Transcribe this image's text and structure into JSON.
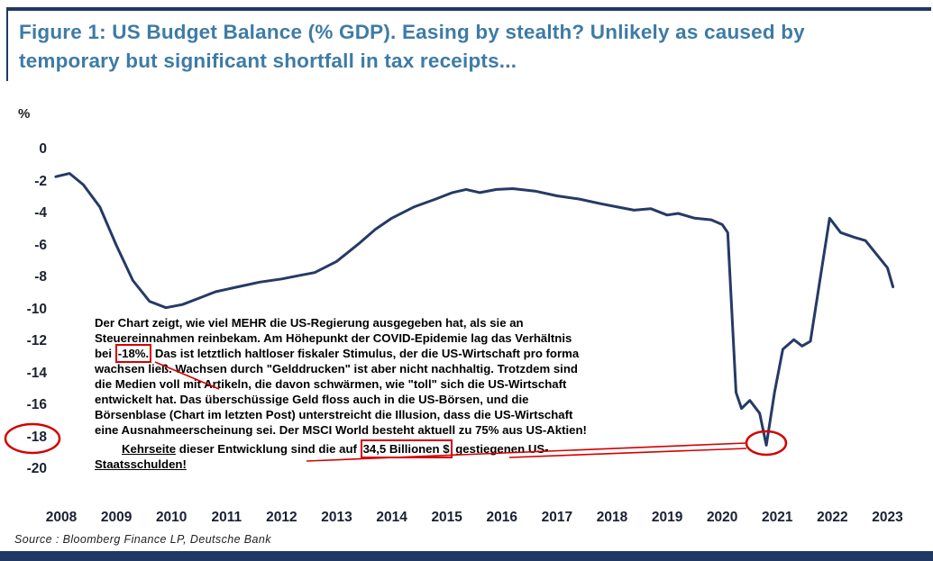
{
  "figure": {
    "title_lines": [
      "Figure 1: US Budget Balance (% GDP). Easing by stealth? Unlikely as caused by",
      "temporary but significant shortfall in tax receipts..."
    ],
    "source": "Source : Bloomberg Finance LP, Deutsche Bank"
  },
  "chart_data": {
    "type": "line",
    "title": "US Budget Balance (% GDP)",
    "xlabel": "",
    "ylabel": "%",
    "ylim": [
      -20,
      0
    ],
    "xlim": [
      2008,
      2023.5
    ],
    "grid": false,
    "legend": "none",
    "y_ticks": [
      0,
      -2,
      -4,
      -6,
      -8,
      -10,
      -12,
      -14,
      -16,
      -18,
      -20
    ],
    "x_ticks": [
      2008,
      2009,
      2010,
      2011,
      2012,
      2013,
      2014,
      2015,
      2016,
      2017,
      2018,
      2019,
      2020,
      2021,
      2022,
      2023
    ],
    "line_color": "#253a66",
    "series": [
      {
        "name": "US Budget Balance (% GDP)",
        "points": [
          [
            2007.9,
            -1.7
          ],
          [
            2008.15,
            -1.5
          ],
          [
            2008.4,
            -2.2
          ],
          [
            2008.7,
            -3.6
          ],
          [
            2009.0,
            -6.0
          ],
          [
            2009.3,
            -8.2
          ],
          [
            2009.6,
            -9.5
          ],
          [
            2009.9,
            -9.9
          ],
          [
            2010.2,
            -9.7
          ],
          [
            2010.5,
            -9.3
          ],
          [
            2010.8,
            -8.9
          ],
          [
            2011.2,
            -8.6
          ],
          [
            2011.6,
            -8.3
          ],
          [
            2012.0,
            -8.1
          ],
          [
            2012.3,
            -7.9
          ],
          [
            2012.6,
            -7.7
          ],
          [
            2013.0,
            -7.0
          ],
          [
            2013.4,
            -5.9
          ],
          [
            2013.7,
            -5.0
          ],
          [
            2014.0,
            -4.3
          ],
          [
            2014.4,
            -3.6
          ],
          [
            2014.8,
            -3.1
          ],
          [
            2015.1,
            -2.7
          ],
          [
            2015.35,
            -2.5
          ],
          [
            2015.6,
            -2.7
          ],
          [
            2015.9,
            -2.5
          ],
          [
            2016.2,
            -2.45
          ],
          [
            2016.6,
            -2.6
          ],
          [
            2017.0,
            -2.9
          ],
          [
            2017.4,
            -3.1
          ],
          [
            2017.8,
            -3.4
          ],
          [
            2018.1,
            -3.6
          ],
          [
            2018.4,
            -3.8
          ],
          [
            2018.7,
            -3.7
          ],
          [
            2019.0,
            -4.1
          ],
          [
            2019.2,
            -4.0
          ],
          [
            2019.5,
            -4.3
          ],
          [
            2019.8,
            -4.4
          ],
          [
            2020.0,
            -4.7
          ],
          [
            2020.1,
            -5.2
          ],
          [
            2020.25,
            -15.2
          ],
          [
            2020.35,
            -16.2
          ],
          [
            2020.5,
            -15.7
          ],
          [
            2020.68,
            -16.5
          ],
          [
            2020.8,
            -18.5
          ],
          [
            2020.95,
            -15.2
          ],
          [
            2021.1,
            -12.5
          ],
          [
            2021.3,
            -11.9
          ],
          [
            2021.45,
            -12.3
          ],
          [
            2021.6,
            -12.0
          ],
          [
            2021.95,
            -4.3
          ],
          [
            2022.15,
            -5.2
          ],
          [
            2022.4,
            -5.5
          ],
          [
            2022.6,
            -5.7
          ],
          [
            2023.0,
            -7.4
          ],
          [
            2023.1,
            -8.6
          ]
        ]
      }
    ],
    "annotations": [
      "-18 y-axis tick circled in red",
      "COVID trough near 2021 (about -18.5% of GDP) circled in red",
      "red pointer lines connect the note text to the trough"
    ]
  },
  "overlay_note": {
    "lines": [
      {
        "segments": [
          {
            "t": "Der Chart zeigt, wie viel MEHR die US-Regierung ausgegeben hat, als sie an"
          }
        ]
      },
      {
        "segments": [
          {
            "t": "Steuereinnahmen reinbekam. Am Höhepunkt der COVID-Epidemie lag das Verhältnis"
          }
        ]
      },
      {
        "segments": [
          {
            "t": "bei "
          },
          {
            "t": "-18%.",
            "style": "redbox"
          },
          {
            "t": " Das ist letztlich haltloser fiskaler Stimulus, der die US-Wirtschaft pro forma"
          }
        ]
      },
      {
        "segments": [
          {
            "t": "wachsen ließ. Wachsen durch \"Gelddrucken\" ist aber nicht nachhaltig. Trotzdem sind"
          }
        ]
      },
      {
        "segments": [
          {
            "t": "die Medien voll mit Artikeln, die davon schwärmen, wie \"toll\" sich die US-Wirtschaft"
          }
        ]
      },
      {
        "segments": [
          {
            "t": "entwickelt hat. Das überschüssige Geld floss auch in die US-Börsen, und die"
          }
        ]
      },
      {
        "segments": [
          {
            "t": "Börsenblase (Chart im letzten Post) unterstreicht die Illusion, dass die US-Wirtschaft"
          }
        ]
      },
      {
        "segments": [
          {
            "t": "eine Ausnahmeerscheinung sei. Der MSCI World besteht aktuell zu 75% aus US-Aktien!"
          }
        ]
      },
      {
        "indent": true,
        "segments": [
          {
            "t": "Kehrseite",
            "style": "underline"
          },
          {
            "t": " dieser Entwicklung sind die auf "
          },
          {
            "t": "34,5 Billionen $",
            "style": "redbox"
          },
          {
            "t": " gestiegenen US-"
          }
        ]
      },
      {
        "segments": [
          {
            "t": "Staatsschulden!",
            "style": "underline"
          }
        ]
      }
    ]
  },
  "colors": {
    "navy": "#1f3864",
    "line": "#253a66",
    "title_blue": "#3e7ba6",
    "annotation_red": "#d40000",
    "tick_text": "#1b2133"
  }
}
